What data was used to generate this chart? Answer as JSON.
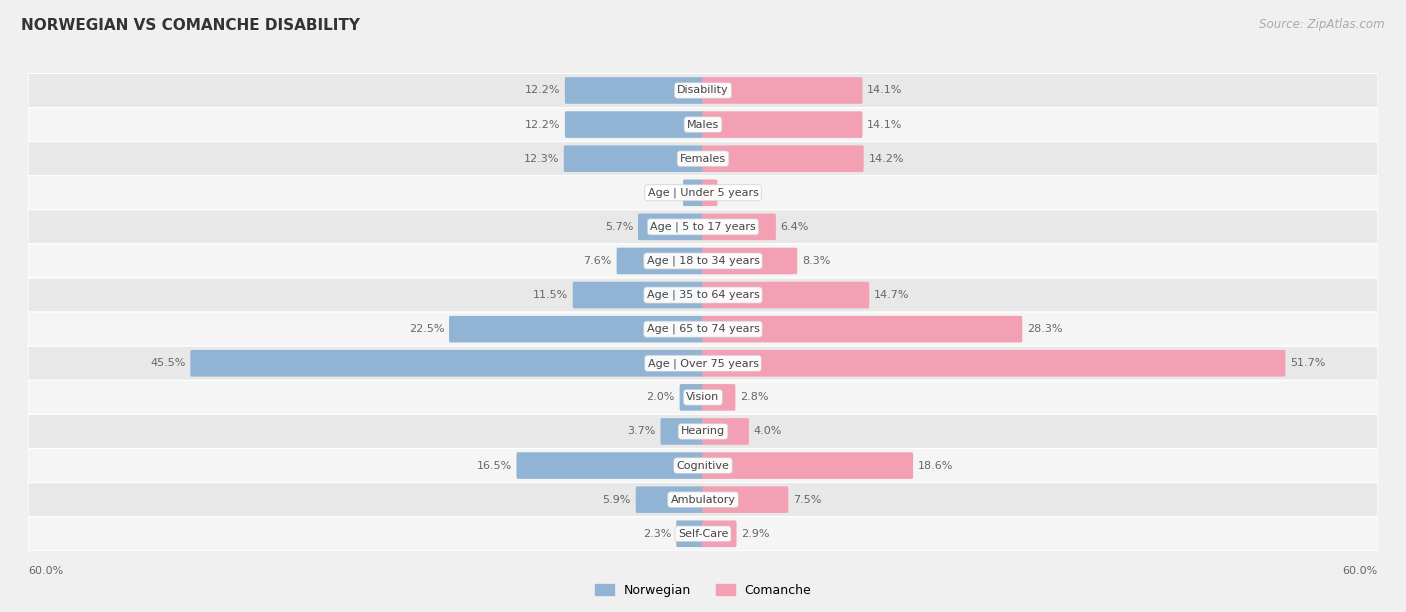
{
  "title": "NORWEGIAN VS COMANCHE DISABILITY",
  "source": "Source: ZipAtlas.com",
  "categories": [
    "Disability",
    "Males",
    "Females",
    "Age | Under 5 years",
    "Age | 5 to 17 years",
    "Age | 18 to 34 years",
    "Age | 35 to 64 years",
    "Age | 65 to 74 years",
    "Age | Over 75 years",
    "Vision",
    "Hearing",
    "Cognitive",
    "Ambulatory",
    "Self-Care"
  ],
  "norwegian": [
    12.2,
    12.2,
    12.3,
    1.7,
    5.7,
    7.6,
    11.5,
    22.5,
    45.5,
    2.0,
    3.7,
    16.5,
    5.9,
    2.3
  ],
  "comanche": [
    14.1,
    14.1,
    14.2,
    1.2,
    6.4,
    8.3,
    14.7,
    28.3,
    51.7,
    2.8,
    4.0,
    18.6,
    7.5,
    2.9
  ],
  "norwegian_color": "#92b4d4",
  "comanche_color": "#f4a0b4",
  "bar_height": 0.62,
  "xlim": 60,
  "background_color": "#f0f0f0",
  "row_bg_even": "#e8e8e8",
  "row_bg_odd": "#f5f5f5",
  "title_fontsize": 11,
  "source_fontsize": 8.5,
  "value_fontsize": 8.0,
  "category_fontsize": 8.0,
  "legend_fontsize": 9,
  "legend_norwegian": "Norwegian",
  "legend_comanche": "Comanche"
}
